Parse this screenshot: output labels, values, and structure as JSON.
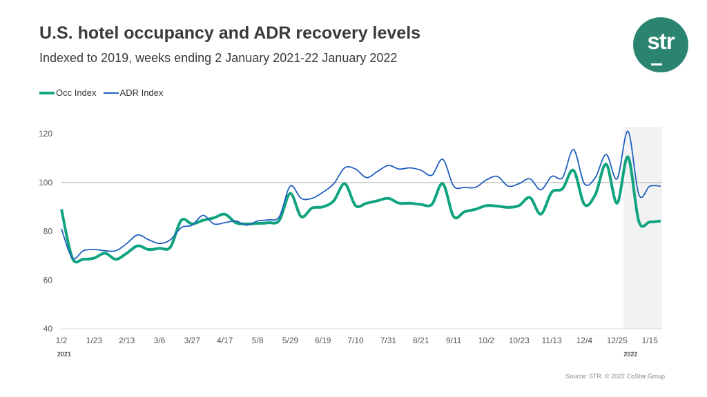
{
  "title": "U.S. hotel occupancy and ADR recovery levels",
  "subtitle": "Indexed to 2019, weeks ending 2 January 2021-22 January 2022",
  "logo_text": "str",
  "source": "Source: STR. © 2022 CoStar Group",
  "colors": {
    "occ": "#0fa37f",
    "adr": "#1f5fbf",
    "logo": "#2a8470",
    "shade": "#f2f2f2"
  },
  "chart_data": {
    "type": "line",
    "title": "U.S. hotel occupancy and ADR recovery levels",
    "xlabel": "",
    "ylabel": "",
    "ylim": [
      40,
      120
    ],
    "yticks": [
      "40",
      "60",
      "80",
      "100",
      "120"
    ],
    "reference_line": 100,
    "legend_position": "top-left",
    "x_tick_labels": [
      "1/2",
      "1/23",
      "2/13",
      "3/6",
      "3/27",
      "4/17",
      "5/8",
      "5/29",
      "6/19",
      "7/10",
      "7/31",
      "8/21",
      "9/11",
      "10/2",
      "10/23",
      "11/13",
      "12/4",
      "12/25",
      "1/15"
    ],
    "x_year_labels": [
      {
        "label": "2021",
        "week_index": 0
      },
      {
        "label": "2022",
        "week_index": 52
      }
    ],
    "shaded_from_week_index": 51.6,
    "series": [
      {
        "name": "Occ Index",
        "values": [
          89,
          69,
          68.5,
          69,
          71,
          68.5,
          71,
          74,
          72.5,
          73,
          73.5,
          84.5,
          83,
          84.5,
          85.5,
          87,
          83.5,
          83,
          83.2,
          83.5,
          84.5,
          95.5,
          86,
          89.5,
          90,
          92.5,
          99.5,
          90.5,
          91.5,
          92.5,
          93.5,
          91.5,
          91.5,
          91,
          91,
          99.5,
          86,
          88,
          89,
          90.5,
          90.3,
          89.8,
          90.5,
          93.8,
          87,
          96,
          97.5,
          105,
          91,
          95,
          107.5,
          91.5,
          110.5,
          84,
          83.8,
          84.2
        ]
      },
      {
        "name": "ADR Index",
        "values": [
          81,
          69,
          72,
          72.5,
          72,
          72,
          75,
          78.5,
          76.5,
          75,
          76.5,
          81.5,
          82.5,
          86.5,
          83,
          83.5,
          84.2,
          82.5,
          84.2,
          84.7,
          86,
          98.5,
          93.5,
          93.5,
          96,
          99.5,
          106,
          105.5,
          102,
          104.5,
          107,
          105.5,
          106,
          105,
          103,
          109.5,
          98.5,
          98,
          98,
          101,
          102.5,
          98.5,
          99.5,
          101.5,
          97,
          102.5,
          102,
          113.5,
          99.5,
          102,
          111.5,
          101.5,
          121,
          95,
          98.5,
          98.5
        ]
      }
    ]
  }
}
